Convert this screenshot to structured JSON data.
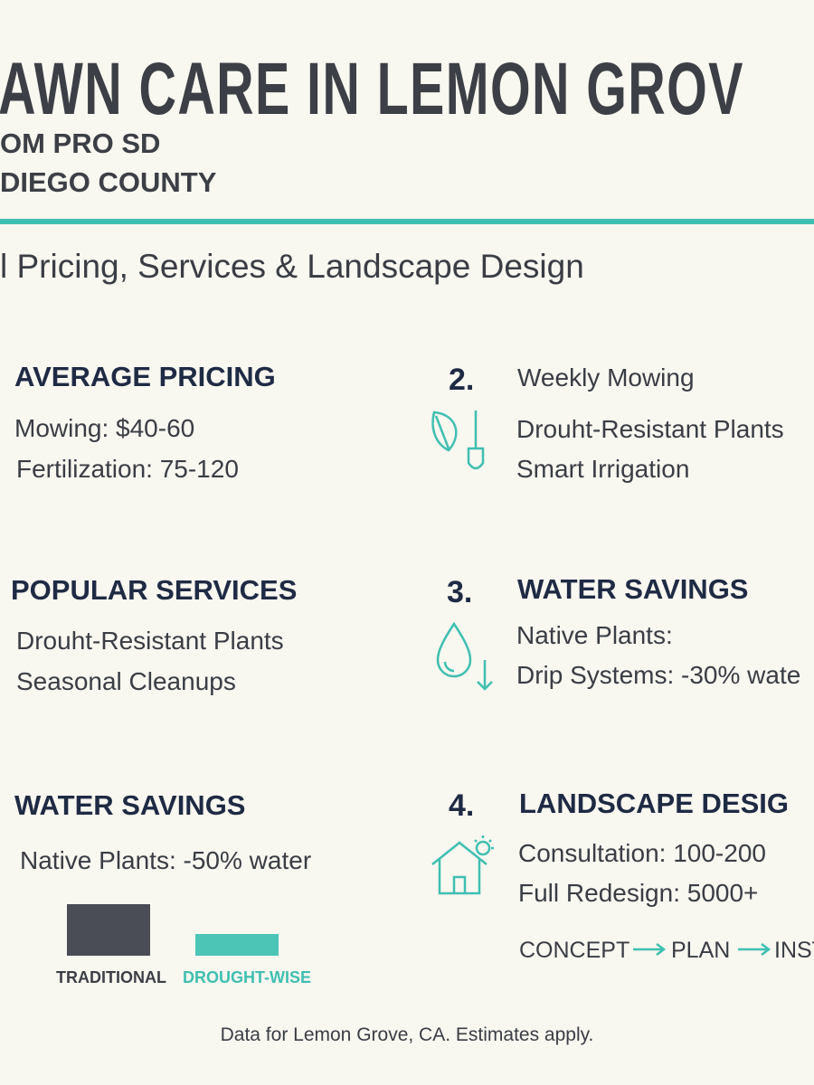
{
  "header": {
    "title": "AWN CARE IN LEMON GROV",
    "subtitle_lines": [
      "OM PRO SD",
      "DIEGO COUNTY"
    ],
    "tagline": "l Pricing, Services & Landscape Design"
  },
  "left_sections": [
    {
      "title": "AVERAGE PRICING",
      "items": [
        "Mowing: $40-60",
        "Fertilization: 75-120"
      ]
    },
    {
      "title": "POPULAR SERVICES",
      "items": [
        "Drouht-Resistant Plants",
        "Seasonal Cleanups"
      ]
    },
    {
      "title": "WATER SAVINGS",
      "items": [
        "Native Plants: -50% water"
      ]
    }
  ],
  "legend": [
    "TRADITIONAL",
    "DROUGHT-WISE"
  ],
  "right_sections": [
    {
      "number": "2.",
      "title": "Weekly Mowing",
      "items": [
        "Drouht-Resistant Plants",
        "Smart Irrigation"
      ]
    },
    {
      "number": "3.",
      "title": "WATER SAVINGS",
      "items": [
        "Native Plants:",
        "Drip Systems: -30% wate"
      ]
    },
    {
      "number": "4.",
      "title": "LANDSCAPE DESIG",
      "items": [
        "Consultation: 100-200",
        "Full Redesign: 5000+"
      ],
      "flow": [
        "CONCEPT",
        "PLAN",
        "INST"
      ]
    }
  ],
  "footer": "Data for Lemon Grove, CA. Estimates apply."
}
